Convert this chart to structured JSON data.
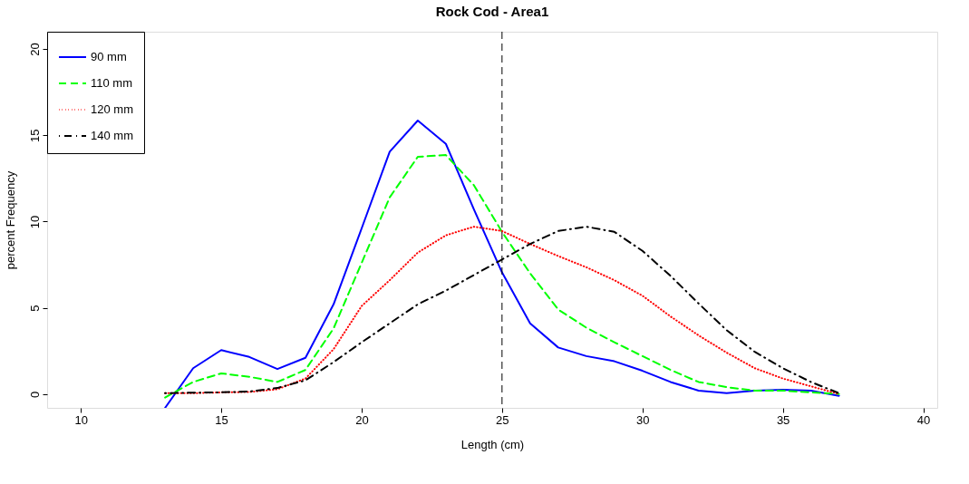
{
  "chart_data": {
    "type": "line",
    "title": "Rock Cod - Area1",
    "xlabel": "Length (cm)",
    "ylabel": "percent Frequency",
    "x": [
      13,
      14,
      15,
      16,
      17,
      18,
      19,
      20,
      21,
      22,
      23,
      24,
      25,
      26,
      27,
      28,
      29,
      30,
      31,
      32,
      33,
      34,
      35,
      36,
      37
    ],
    "series": [
      {
        "name": "90 mm",
        "color": "#0000ff",
        "line_style": "solid",
        "values": [
          -0.8,
          1.5,
          2.55,
          2.15,
          1.45,
          2.1,
          5.2,
          9.6,
          14.05,
          15.85,
          14.5,
          10.7,
          7.05,
          4.1,
          2.7,
          2.2,
          1.9,
          1.35,
          0.7,
          0.2,
          0.05,
          0.2,
          0.25,
          0.2,
          -0.1
        ]
      },
      {
        "name": "110 mm",
        "color": "#00ff00",
        "line_style": "dashed",
        "values": [
          -0.2,
          0.7,
          1.2,
          1.0,
          0.7,
          1.4,
          3.8,
          7.6,
          11.4,
          13.75,
          13.85,
          12.1,
          9.4,
          7.0,
          4.9,
          3.85,
          3.0,
          2.2,
          1.4,
          0.7,
          0.4,
          0.2,
          0.2,
          0.1,
          0.0
        ]
      },
      {
        "name": "120 mm",
        "color": "#ff0000",
        "line_style": "dotted",
        "values": [
          0.05,
          0.05,
          0.1,
          0.12,
          0.28,
          0.9,
          2.6,
          5.1,
          6.6,
          8.2,
          9.2,
          9.7,
          9.45,
          8.7,
          8.0,
          7.35,
          6.6,
          5.7,
          4.5,
          3.4,
          2.4,
          1.5,
          0.9,
          0.45,
          0.0
        ]
      },
      {
        "name": "140 mm",
        "color": "#000000",
        "line_style": "dashdot",
        "values": [
          0.05,
          0.08,
          0.1,
          0.15,
          0.35,
          0.8,
          1.85,
          3.0,
          4.1,
          5.2,
          6.0,
          6.9,
          7.8,
          8.7,
          9.45,
          9.7,
          9.4,
          8.3,
          6.85,
          5.25,
          3.7,
          2.45,
          1.5,
          0.7,
          0.05
        ]
      }
    ],
    "xlim": [
      8.8,
      40.5
    ],
    "ylim": [
      -0.8,
      21
    ],
    "xticks": [
      10,
      15,
      20,
      25,
      30,
      35,
      40
    ],
    "yticks": [
      0,
      5,
      10,
      15,
      20
    ],
    "ref_lines": [
      {
        "axis": "x",
        "value": 25,
        "color": "#000000",
        "line_style": "dashed"
      }
    ],
    "grid": false,
    "legend": "top left",
    "marker": "none"
  }
}
